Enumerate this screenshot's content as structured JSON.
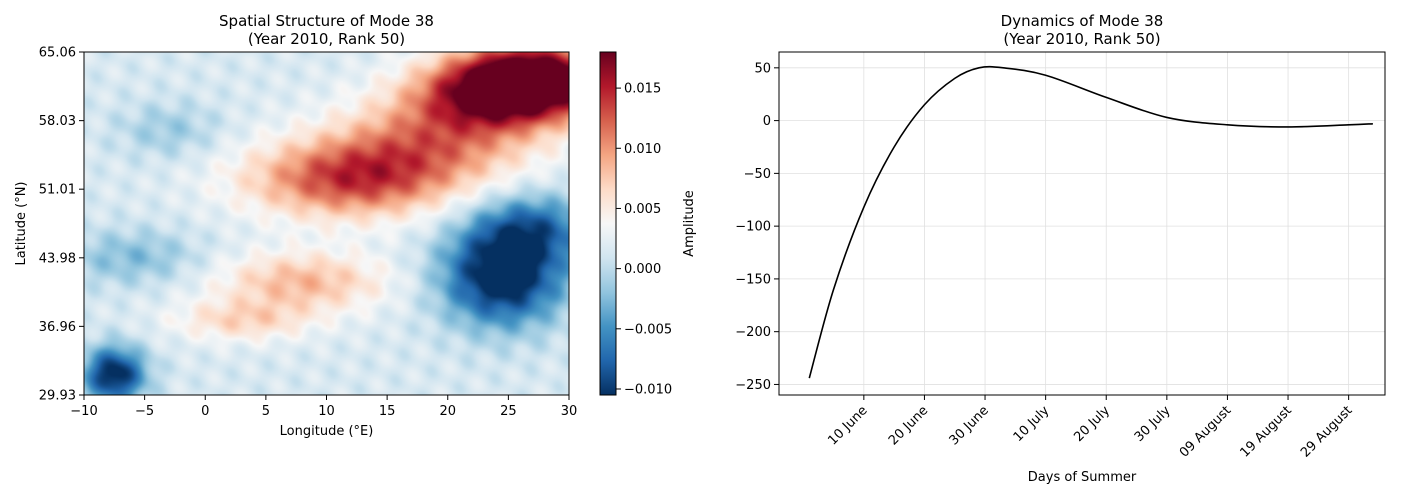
{
  "chart_data": [
    {
      "type": "heatmap",
      "title": "Spatial Structure of Mode 38\n(Year 2010, Rank 50)",
      "xlabel": "Longitude (°E)",
      "ylabel": "Latitude (°N)",
      "xlim": [
        -10,
        30
      ],
      "ylim": [
        29.93,
        65.06
      ],
      "x_ticks": [
        "−10",
        "−5",
        "0",
        "5",
        "10",
        "15",
        "20",
        "25",
        "30"
      ],
      "x_tick_values": [
        -10,
        -5,
        0,
        5,
        10,
        15,
        20,
        25,
        30
      ],
      "y_ticks": [
        "29.93",
        "36.96",
        "43.98",
        "51.01",
        "58.03",
        "65.06"
      ],
      "y_tick_values": [
        29.93,
        36.96,
        43.98,
        51.01,
        58.03,
        65.06
      ],
      "colormap": "RdBu_r",
      "colorbar": {
        "label": "Amplitude",
        "vmin": -0.0105,
        "vmax": 0.018,
        "ticks": [
          "−0.010",
          "−0.005",
          "0.000",
          "0.005",
          "0.010",
          "0.015"
        ],
        "tick_values": [
          -0.01,
          -0.005,
          0.0,
          0.005,
          0.01,
          0.015
        ]
      },
      "features": [
        {
          "lon": 27,
          "lat": 62.5,
          "amp": 0.018,
          "slon": 4.5,
          "slat": 2.5
        },
        {
          "lon": 24,
          "lat": 60.5,
          "amp": 0.012,
          "slon": 5,
          "slat": 2.5
        },
        {
          "lon": 12,
          "lat": 52,
          "amp": 0.012,
          "slon": 6,
          "slat": 2.8
        },
        {
          "lon": 19,
          "lat": 56,
          "amp": 0.008,
          "slon": 6,
          "slat": 3
        },
        {
          "lon": 8,
          "lat": 41.5,
          "amp": 0.007,
          "slon": 5,
          "slat": 2.2
        },
        {
          "lon": 3,
          "lat": 37.5,
          "amp": 0.005,
          "slon": 4,
          "slat": 1.5
        },
        {
          "lon": 24.5,
          "lat": 42,
          "amp": -0.014,
          "slon": 3.5,
          "slat": 3.5
        },
        {
          "lon": 27,
          "lat": 47,
          "amp": -0.008,
          "slon": 3.5,
          "slat": 2.5
        },
        {
          "lon": -7.5,
          "lat": 32,
          "amp": -0.013,
          "slon": 1.8,
          "slat": 2
        },
        {
          "lon": -6,
          "lat": 44,
          "amp": -0.004,
          "slon": 4,
          "slat": 2
        },
        {
          "lon": -3,
          "lat": 57,
          "amp": -0.003,
          "slon": 3,
          "slat": 2
        }
      ]
    },
    {
      "type": "line",
      "title": "Dynamics of Mode 38\n(Year 2010, Rank 50)",
      "xlabel": "Days of Summer",
      "ylabel": "",
      "x_ticks": [
        "10 June",
        "20 June",
        "30 June",
        "10 July",
        "20 July",
        "30 July",
        "09 August",
        "19 August",
        "29 August"
      ],
      "xlim": [
        "2010-05-27",
        "2010-09-04"
      ],
      "ylim": [
        -260,
        65
      ],
      "y_ticks": [
        "50",
        "0",
        "−50",
        "−100",
        "−150",
        "−200",
        "−250"
      ],
      "y_tick_values": [
        50,
        0,
        -50,
        -100,
        -150,
        -200,
        -250
      ],
      "grid": true,
      "series": [
        {
          "color": "#000000",
          "x": [
            "2010-06-01",
            "2010-06-05",
            "2010-06-10",
            "2010-06-15",
            "2010-06-20",
            "2010-06-25",
            "2010-06-29",
            "2010-07-03",
            "2010-07-10",
            "2010-07-20",
            "2010-07-30",
            "2010-08-09",
            "2010-08-19",
            "2010-08-29",
            "2010-09-02"
          ],
          "values": [
            -244,
            -160,
            -82,
            -25,
            15,
            40,
            50,
            50,
            43,
            22,
            3,
            -4,
            -6,
            -4,
            -3
          ]
        }
      ]
    }
  ]
}
